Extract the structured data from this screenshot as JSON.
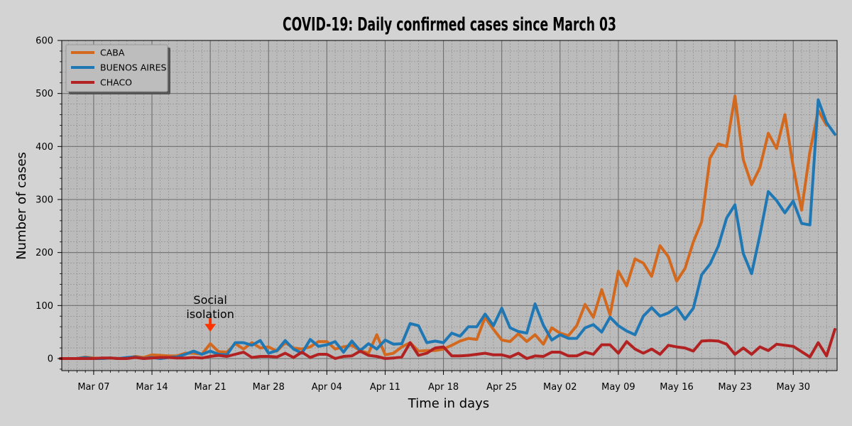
{
  "chart_data": {
    "type": "line",
    "title": "COVID-19: Daily confirmed cases since March 03",
    "xlabel": "Time in days",
    "ylabel": "Number of cases",
    "ylim": [
      0,
      600
    ],
    "yticks": [
      0,
      100,
      200,
      300,
      400,
      500,
      600
    ],
    "grid": true,
    "legend_position": "top-left",
    "x_start": "2020-03-03",
    "xticks": [
      {
        "label": "Mar 07",
        "day": 4
      },
      {
        "label": "Mar 14",
        "day": 11
      },
      {
        "label": "Mar 21",
        "day": 18
      },
      {
        "label": "Mar 28",
        "day": 25
      },
      {
        "label": "Apr 04",
        "day": 32
      },
      {
        "label": "Apr 11",
        "day": 39
      },
      {
        "label": "Apr 18",
        "day": 46
      },
      {
        "label": "Apr 25",
        "day": 53
      },
      {
        "label": "May 02",
        "day": 60
      },
      {
        "label": "May 09",
        "day": 67
      },
      {
        "label": "May 16",
        "day": 74
      },
      {
        "label": "May 23",
        "day": 81
      },
      {
        "label": "May 30",
        "day": 88
      }
    ],
    "xlim": [
      0,
      92
    ],
    "annotation": {
      "lines": [
        "Social",
        "isolation"
      ],
      "day": 18,
      "value": 60,
      "color": "#ff3300"
    },
    "series": [
      {
        "name": "CABA",
        "color": "#d2691e",
        "values": [
          0,
          0,
          0,
          3,
          1,
          0,
          1,
          0,
          1,
          4,
          2,
          7,
          6,
          5,
          5,
          10,
          10,
          8,
          28,
          13,
          12,
          28,
          18,
          30,
          20,
          22,
          14,
          30,
          20,
          18,
          22,
          32,
          32,
          18,
          22,
          25,
          15,
          10,
          45,
          7,
          10,
          22,
          30,
          14,
          15,
          15,
          18,
          25,
          33,
          38,
          36,
          78,
          55,
          35,
          32,
          47,
          32,
          45,
          27,
          58,
          48,
          43,
          62,
          102,
          78,
          130,
          82,
          165,
          137,
          188,
          180,
          155,
          213,
          192,
          146,
          170,
          220,
          258,
          378,
          405,
          400,
          495,
          375,
          328,
          360,
          425,
          396,
          460,
          362,
          280,
          390,
          468,
          440
        ]
      },
      {
        "name": "BUENOS AIRES",
        "color": "#1f77b4",
        "values": [
          0,
          0,
          0,
          2,
          0,
          0,
          1,
          0,
          2,
          3,
          0,
          2,
          0,
          2,
          3,
          8,
          14,
          8,
          14,
          8,
          7,
          30,
          30,
          25,
          34,
          10,
          15,
          34,
          18,
          10,
          36,
          23,
          26,
          32,
          12,
          33,
          15,
          28,
          18,
          35,
          27,
          28,
          66,
          62,
          30,
          33,
          30,
          48,
          42,
          60,
          60,
          84,
          62,
          95,
          58,
          51,
          48,
          103,
          63,
          35,
          45,
          38,
          38,
          58,
          64,
          50,
          78,
          62,
          52,
          45,
          80,
          96,
          80,
          86,
          97,
          74,
          95,
          158,
          178,
          212,
          265,
          290,
          198,
          160,
          233,
          315,
          298,
          275,
          297,
          255,
          252,
          488,
          445,
          423
        ]
      },
      {
        "name": "CHACO",
        "color": "#b22222",
        "values": [
          0,
          0,
          0,
          0,
          0,
          1,
          1,
          0,
          0,
          2,
          0,
          1,
          2,
          2,
          1,
          1,
          2,
          1,
          4,
          6,
          4,
          8,
          12,
          2,
          4,
          4,
          3,
          10,
          2,
          12,
          2,
          8,
          8,
          0,
          4,
          5,
          14,
          6,
          4,
          0,
          1,
          3,
          30,
          6,
          10,
          20,
          22,
          5,
          5,
          6,
          8,
          10,
          7,
          7,
          3,
          10,
          0,
          5,
          4,
          12,
          12,
          5,
          5,
          12,
          8,
          26,
          26,
          10,
          32,
          18,
          10,
          18,
          8,
          25,
          22,
          20,
          14,
          33,
          34,
          33,
          27,
          8,
          20,
          8,
          22,
          15,
          27,
          25,
          23,
          13,
          3,
          30,
          5,
          55
        ]
      }
    ]
  }
}
